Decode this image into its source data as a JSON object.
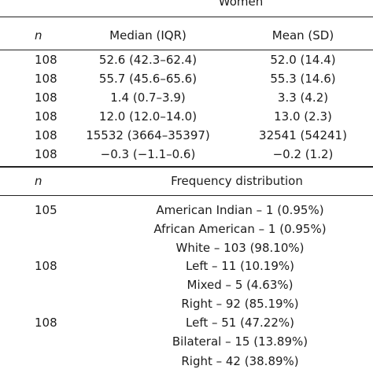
{
  "top_section": {
    "group_header": "Women",
    "col_n": "n",
    "col_median": "Median (IQR)",
    "col_mean": "Mean (SD)",
    "rows": [
      {
        "n": "108",
        "median": "52.6 (42.3–62.4)",
        "mean": "52.0 (14.4)"
      },
      {
        "n": "108",
        "median": "55.7 (45.6–65.6)",
        "mean": "55.3 (14.6)"
      },
      {
        "n": "108",
        "median": "1.4 (0.7–3.9)",
        "mean": "3.3 (4.2)"
      },
      {
        "n": "108",
        "median": "12.0 (12.0–14.0)",
        "mean": "13.0 (2.3)"
      },
      {
        "n": "108",
        "median": "15532 (3664–35397)",
        "mean": "32541 (54241)"
      },
      {
        "n": "108",
        "median": "−0.3 (−1.1–0.6)",
        "mean": "−0.2 (1.2)"
      }
    ]
  },
  "bottom_section": {
    "col_n": "n",
    "col_freq": "Frequency distribution",
    "rows": [
      {
        "n": "105",
        "freq": "American Indian – 1 (0.95%)"
      },
      {
        "n": "",
        "freq": "African American – 1 (0.95%)"
      },
      {
        "n": "",
        "freq": "White – 103 (98.10%)"
      },
      {
        "n": "108",
        "freq": "Left – 11 (10.19%)"
      },
      {
        "n": "",
        "freq": "Mixed – 5 (4.63%)"
      },
      {
        "n": "",
        "freq": "Right – 92 (85.19%)"
      },
      {
        "n": "108",
        "freq": "Left – 51 (47.22%)"
      },
      {
        "n": "",
        "freq": "Bilateral – 15 (13.89%)"
      },
      {
        "n": "",
        "freq": "Right – 42 (38.89%)"
      }
    ]
  }
}
